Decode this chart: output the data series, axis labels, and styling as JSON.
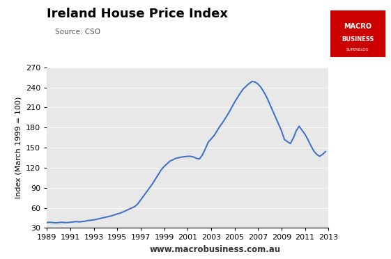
{
  "title": "Ireland House Price Index",
  "source_text": "Source: CSO",
  "ylabel": "Index (March 1999 = 100)",
  "xlabel": "",
  "website": "www.macrobusiness.com.au",
  "background_color": "#E8E8E8",
  "line_color": "#4472C4",
  "ylim": [
    30,
    270
  ],
  "yticks": [
    30,
    60,
    90,
    120,
    150,
    180,
    210,
    240,
    270
  ],
  "xtick_labels": [
    "1989",
    "1991",
    "1993",
    "1995",
    "1997",
    "1999",
    "2001",
    "2003",
    "2005",
    "2007",
    "2009",
    "2011",
    "2013"
  ],
  "macro_box_color": "#CC0000",
  "data": {
    "years": [
      1989.0,
      1989.25,
      1989.5,
      1989.75,
      1990.0,
      1990.25,
      1990.5,
      1990.75,
      1991.0,
      1991.25,
      1991.5,
      1991.75,
      1992.0,
      1992.25,
      1992.5,
      1992.75,
      1993.0,
      1993.25,
      1993.5,
      1993.75,
      1994.0,
      1994.25,
      1994.5,
      1994.75,
      1995.0,
      1995.25,
      1995.5,
      1995.75,
      1996.0,
      1996.25,
      1996.5,
      1996.75,
      1997.0,
      1997.25,
      1997.5,
      1997.75,
      1998.0,
      1998.25,
      1998.5,
      1998.75,
      1999.0,
      1999.25,
      1999.5,
      1999.75,
      2000.0,
      2000.25,
      2000.5,
      2000.75,
      2001.0,
      2001.25,
      2001.5,
      2001.75,
      2002.0,
      2002.25,
      2002.5,
      2002.75,
      2003.0,
      2003.25,
      2003.5,
      2003.75,
      2004.0,
      2004.25,
      2004.5,
      2004.75,
      2005.0,
      2005.25,
      2005.5,
      2005.75,
      2006.0,
      2006.25,
      2006.5,
      2006.75,
      2007.0,
      2007.25,
      2007.5,
      2007.75,
      2008.0,
      2008.25,
      2008.5,
      2008.75,
      2009.0,
      2009.25,
      2009.5,
      2009.75,
      2010.0,
      2010.25,
      2010.5,
      2010.75,
      2011.0,
      2011.25,
      2011.5,
      2011.75,
      2012.0,
      2012.25,
      2012.5,
      2012.75
    ],
    "values": [
      38.0,
      38.5,
      38.0,
      37.5,
      38.0,
      38.5,
      38.0,
      38.0,
      38.5,
      39.0,
      39.5,
      39.0,
      39.5,
      40.0,
      41.0,
      41.5,
      42.0,
      43.0,
      44.0,
      45.0,
      46.0,
      47.0,
      48.0,
      49.5,
      51.0,
      52.0,
      54.0,
      56.0,
      58.0,
      60.0,
      62.0,
      66.0,
      72.0,
      78.0,
      84.0,
      90.0,
      96.0,
      103.0,
      110.0,
      117.0,
      122.0,
      126.0,
      130.0,
      132.0,
      134.0,
      135.0,
      136.0,
      136.5,
      137.0,
      137.0,
      136.0,
      134.0,
      133.0,
      139.0,
      148.0,
      158.0,
      163.0,
      168.0,
      175.0,
      182.0,
      188.0,
      195.0,
      202.0,
      210.0,
      218.0,
      225.0,
      232.0,
      238.0,
      242.0,
      246.0,
      249.0,
      248.0,
      245.0,
      240.0,
      233.0,
      225.0,
      215.0,
      205.0,
      195.0,
      185.0,
      175.0,
      162.0,
      159.0,
      156.0,
      164.0,
      175.0,
      182.0,
      176.0,
      170.0,
      162.0,
      153.0,
      145.0,
      140.0,
      137.0,
      140.0,
      144.0
    ]
  }
}
